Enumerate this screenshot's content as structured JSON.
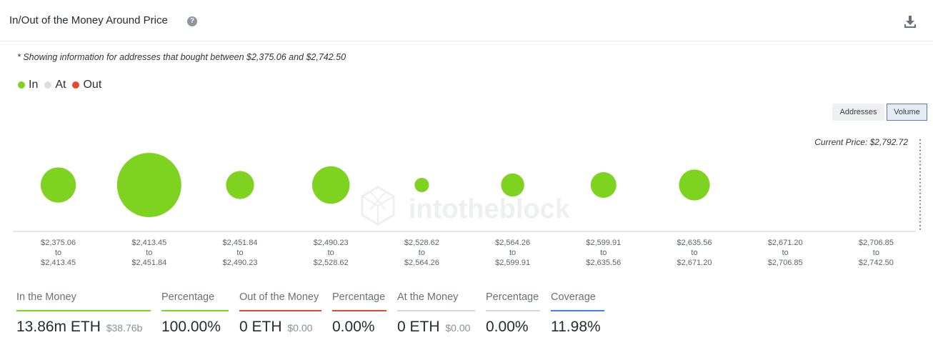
{
  "header": {
    "title": "In/Out of the Money Around Price",
    "help_icon": "question-circle-icon",
    "download_icon": "download-icon"
  },
  "note": "* Showing information for addresses that bought between $2,375.06 and $2,742.50",
  "legend": [
    {
      "label": "In",
      "color": "#7ed321"
    },
    {
      "label": "At",
      "color": "#dcdcdc"
    },
    {
      "label": "Out",
      "color": "#e04b2d"
    }
  ],
  "toggle": {
    "addresses_label": "Addresses",
    "volume_label": "Volume",
    "selected": "Volume"
  },
  "current_price": "Current Price: $2,792.72",
  "watermark": "intotheblock",
  "chart_data": {
    "type": "bubble",
    "metric": "Volume",
    "categories": [
      {
        "from": "$2,375.06",
        "to": "$2,413.45"
      },
      {
        "from": "$2,413.45",
        "to": "$2,451.84"
      },
      {
        "from": "$2,451.84",
        "to": "$2,490.23"
      },
      {
        "from": "$2,490.23",
        "to": "$2,528.62"
      },
      {
        "from": "$2,528.62",
        "to": "$2,564.26"
      },
      {
        "from": "$2,564.26",
        "to": "$2,599.91"
      },
      {
        "from": "$2,599.91",
        "to": "$2,635.56"
      },
      {
        "from": "$2,635.56",
        "to": "$2,671.20"
      },
      {
        "from": "$2,671.20",
        "to": "$2,706.85"
      },
      {
        "from": "$2,706.85",
        "to": "$2,742.50"
      }
    ],
    "connector": "to",
    "series": [
      {
        "status": "In",
        "color": "#7ed321",
        "relative_size": [
          0.3,
          1.0,
          0.19,
          0.34,
          0.05,
          0.13,
          0.16,
          0.23,
          0,
          0
        ]
      }
    ]
  },
  "stats": [
    {
      "label": "In the Money",
      "value": "13.86m ETH",
      "sub": "$38.76b",
      "color": "#7ed321"
    },
    {
      "label": "Percentage",
      "value": "100.00%",
      "sub": "",
      "color": "#7ed321"
    },
    {
      "label": "Out of the Money",
      "value": "0 ETH",
      "sub": "$0.00",
      "color": "#e04b2d"
    },
    {
      "label": "Percentage",
      "value": "0.00%",
      "sub": "",
      "color": "#e04b2d"
    },
    {
      "label": "At the Money",
      "value": "0 ETH",
      "sub": "$0.00",
      "color": "#d6d8db"
    },
    {
      "label": "Percentage",
      "value": "0.00%",
      "sub": "",
      "color": "#d6d8db"
    },
    {
      "label": "Coverage",
      "value": "11.98%",
      "sub": "",
      "color": "#3b82f6"
    }
  ]
}
